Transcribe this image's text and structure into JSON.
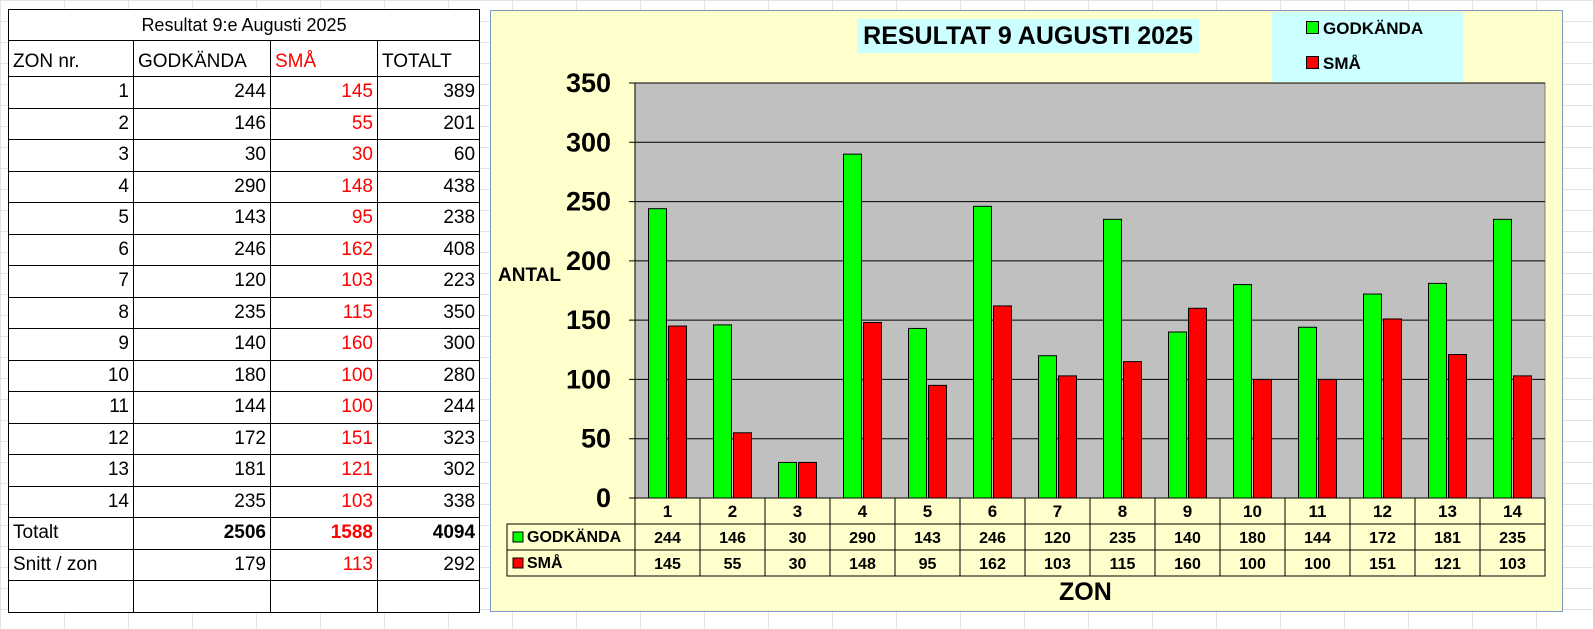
{
  "table": {
    "title": "Resultat 9:e Augusti 2025",
    "headers": [
      "ZON nr.",
      "GODKÄNDA",
      "SMÅ",
      "TOTALT"
    ],
    "rows": [
      [
        "1",
        "244",
        "145",
        "389"
      ],
      [
        "2",
        "146",
        "55",
        "201"
      ],
      [
        "3",
        "30",
        "30",
        "60"
      ],
      [
        "4",
        "290",
        "148",
        "438"
      ],
      [
        "5",
        "143",
        "95",
        "238"
      ],
      [
        "6",
        "246",
        "162",
        "408"
      ],
      [
        "7",
        "120",
        "103",
        "223"
      ],
      [
        "8",
        "235",
        "115",
        "350"
      ],
      [
        "9",
        "140",
        "160",
        "300"
      ],
      [
        "10",
        "180",
        "100",
        "280"
      ],
      [
        "11",
        "144",
        "100",
        "244"
      ],
      [
        "12",
        "172",
        "151",
        "323"
      ],
      [
        "13",
        "181",
        "121",
        "302"
      ],
      [
        "14",
        "235",
        "103",
        "338"
      ]
    ],
    "total": [
      "Totalt",
      "2506",
      "1588",
      "4094"
    ],
    "average": [
      "Snitt / zon",
      "179",
      "113",
      "292"
    ]
  },
  "chart_data": {
    "type": "bar",
    "title": "RESULTAT 9 AUGUSTI 2025",
    "xlabel": "ZON",
    "ylabel": "ANTAL",
    "categories": [
      "1",
      "2",
      "3",
      "4",
      "5",
      "6",
      "7",
      "8",
      "9",
      "10",
      "11",
      "12",
      "13",
      "14"
    ],
    "series": [
      {
        "name": "GODKÄNDA",
        "color": "#00ff00",
        "values": [
          244,
          146,
          30,
          290,
          143,
          246,
          120,
          235,
          140,
          180,
          144,
          172,
          181,
          235
        ]
      },
      {
        "name": "SMÅ",
        "color": "#ff0000",
        "values": [
          145,
          55,
          30,
          148,
          95,
          162,
          103,
          115,
          160,
          100,
          100,
          151,
          121,
          103
        ]
      }
    ],
    "ylim": [
      0,
      350
    ],
    "yticks": [
      "0",
      "50",
      "100",
      "150",
      "200",
      "250",
      "300",
      "350"
    ],
    "grid": true,
    "legend": "top-right",
    "plot_bg": "#c0c0c0",
    "chart_bg": "#ffffcc"
  }
}
